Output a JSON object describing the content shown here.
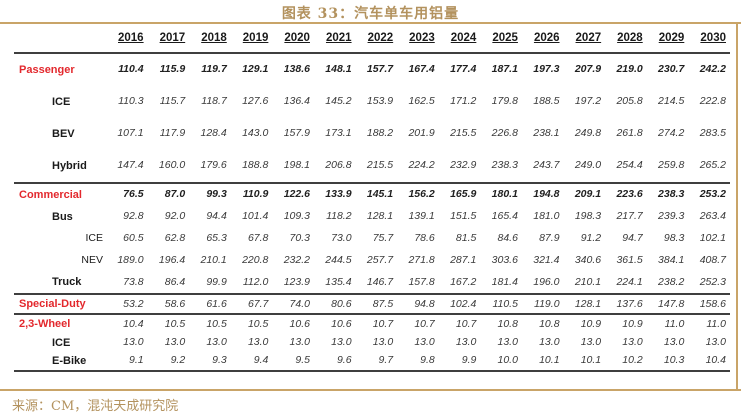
{
  "colors": {
    "accent_tan_text": "#b3925e",
    "accent_tan_line": "#c9a468",
    "section_red": "#e3282d",
    "table_rule": "#3f3f3f"
  },
  "chart_data": {
    "type": "table",
    "title": "图表 33：汽车单车用铝量",
    "source": "来源：CM，混沌天成研究院",
    "categories": [
      "2016",
      "2017",
      "2018",
      "2019",
      "2020",
      "2021",
      "2022",
      "2023",
      "2024",
      "2025",
      "2026",
      "2027",
      "2028",
      "2029",
      "2030"
    ],
    "rows": [
      {
        "name": "Passenger",
        "level": 0,
        "emphasis": true,
        "values": [
          "110.4",
          "115.9",
          "119.7",
          "129.1",
          "138.6",
          "148.1",
          "157.7",
          "167.4",
          "177.4",
          "187.1",
          "197.3",
          "207.9",
          "219.0",
          "230.7",
          "242.2"
        ]
      },
      {
        "name": "ICE",
        "level": 1,
        "emphasis": false,
        "values": [
          "110.3",
          "115.7",
          "118.7",
          "127.6",
          "136.4",
          "145.2",
          "153.9",
          "162.5",
          "171.2",
          "179.8",
          "188.5",
          "197.2",
          "205.8",
          "214.5",
          "222.8"
        ]
      },
      {
        "name": "BEV",
        "level": 1,
        "emphasis": false,
        "values": [
          "107.1",
          "117.9",
          "128.4",
          "143.0",
          "157.9",
          "173.1",
          "188.2",
          "201.9",
          "215.5",
          "226.8",
          "238.1",
          "249.8",
          "261.8",
          "274.2",
          "283.5"
        ]
      },
      {
        "name": "Hybrid",
        "level": 1,
        "emphasis": false,
        "values": [
          "147.4",
          "160.0",
          "179.6",
          "188.8",
          "198.1",
          "206.8",
          "215.5",
          "224.2",
          "232.9",
          "238.3",
          "243.7",
          "249.0",
          "254.4",
          "259.8",
          "265.2"
        ]
      },
      {
        "name": "Commercial",
        "level": 0,
        "emphasis": true,
        "values": [
          "76.5",
          "87.0",
          "99.3",
          "110.9",
          "122.6",
          "133.9",
          "145.1",
          "156.2",
          "165.9",
          "180.1",
          "194.8",
          "209.1",
          "223.6",
          "238.3",
          "253.2"
        ]
      },
      {
        "name": "Bus",
        "level": 1,
        "emphasis": false,
        "values": [
          "92.8",
          "92.0",
          "94.4",
          "101.4",
          "109.3",
          "118.2",
          "128.1",
          "139.1",
          "151.5",
          "165.4",
          "181.0",
          "198.3",
          "217.7",
          "239.3",
          "263.4"
        ]
      },
      {
        "name": "ICE",
        "level": 2,
        "emphasis": false,
        "values": [
          "60.5",
          "62.8",
          "65.3",
          "67.8",
          "70.3",
          "73.0",
          "75.7",
          "78.6",
          "81.5",
          "84.6",
          "87.9",
          "91.2",
          "94.7",
          "98.3",
          "102.1"
        ]
      },
      {
        "name": "NEV",
        "level": 2,
        "emphasis": false,
        "values": [
          "189.0",
          "196.4",
          "210.1",
          "220.8",
          "232.2",
          "244.5",
          "257.7",
          "271.8",
          "287.1",
          "303.6",
          "321.4",
          "340.6",
          "361.5",
          "384.1",
          "408.7"
        ]
      },
      {
        "name": "Truck",
        "level": 1,
        "emphasis": false,
        "values": [
          "73.8",
          "86.4",
          "99.9",
          "112.0",
          "123.9",
          "135.4",
          "146.7",
          "157.8",
          "167.2",
          "181.4",
          "196.0",
          "210.1",
          "224.1",
          "238.2",
          "252.3"
        ]
      },
      {
        "name": "Special-Duty",
        "level": 0,
        "emphasis": false,
        "values": [
          "53.2",
          "58.6",
          "61.6",
          "67.7",
          "74.0",
          "80.6",
          "87.5",
          "94.8",
          "102.4",
          "110.5",
          "119.0",
          "128.1",
          "137.6",
          "147.8",
          "158.6"
        ]
      },
      {
        "name": "2,3-Wheel",
        "level": 0,
        "emphasis": false,
        "values": [
          "10.4",
          "10.5",
          "10.5",
          "10.5",
          "10.6",
          "10.6",
          "10.7",
          "10.7",
          "10.7",
          "10.8",
          "10.8",
          "10.9",
          "10.9",
          "11.0",
          "11.0"
        ]
      },
      {
        "name": "ICE",
        "level": 1,
        "emphasis": false,
        "values": [
          "13.0",
          "13.0",
          "13.0",
          "13.0",
          "13.0",
          "13.0",
          "13.0",
          "13.0",
          "13.0",
          "13.0",
          "13.0",
          "13.0",
          "13.0",
          "13.0",
          "13.0"
        ]
      },
      {
        "name": "E-Bike",
        "level": 1,
        "emphasis": false,
        "values": [
          "9.1",
          "9.2",
          "9.3",
          "9.4",
          "9.5",
          "9.6",
          "9.7",
          "9.8",
          "9.9",
          "10.0",
          "10.1",
          "10.1",
          "10.2",
          "10.3",
          "10.4"
        ]
      }
    ]
  }
}
